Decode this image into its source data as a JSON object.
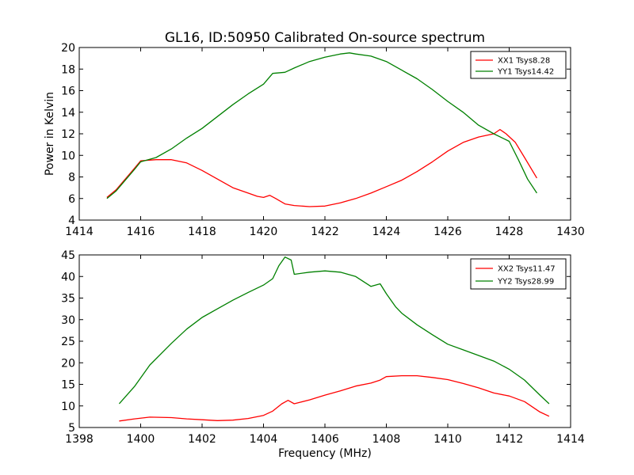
{
  "figure": {
    "title": "GL16, ID:50950 Calibrated On-source spectrum",
    "xlabel": "Frequency (MHz)"
  },
  "chart_data": [
    {
      "type": "line",
      "title": "GL16, ID:50950 Calibrated On-source spectrum",
      "xlabel": "",
      "ylabel": "Power in Kelvin",
      "xlim": [
        1414,
        1430
      ],
      "ylim": [
        4,
        20
      ],
      "xticks": [
        1414,
        1416,
        1418,
        1420,
        1422,
        1424,
        1426,
        1428,
        1430
      ],
      "yticks": [
        4,
        6,
        8,
        10,
        12,
        14,
        16,
        18,
        20
      ],
      "grid": false,
      "legend": "top-right",
      "series": [
        {
          "name": "XX1 Tsys8.28",
          "color": "#ff0000",
          "x": [
            1414.9,
            1415.2,
            1415.5,
            1415.8,
            1416.0,
            1416.5,
            1417.0,
            1417.5,
            1418.0,
            1418.5,
            1419.0,
            1419.5,
            1419.8,
            1420.0,
            1420.2,
            1420.4,
            1420.7,
            1421.0,
            1421.5,
            1422.0,
            1422.5,
            1423.0,
            1423.5,
            1424.0,
            1424.5,
            1425.0,
            1425.5,
            1426.0,
            1426.5,
            1427.0,
            1427.5,
            1427.7,
            1427.9,
            1428.2,
            1428.5,
            1428.9
          ],
          "y": [
            6.1,
            6.8,
            7.8,
            8.8,
            9.5,
            9.6,
            9.6,
            9.3,
            8.6,
            7.8,
            7.0,
            6.5,
            6.2,
            6.1,
            6.3,
            6.0,
            5.5,
            5.35,
            5.25,
            5.3,
            5.6,
            6.0,
            6.5,
            7.1,
            7.7,
            8.5,
            9.4,
            10.4,
            11.2,
            11.7,
            12.0,
            12.4,
            12.0,
            11.2,
            9.8,
            7.9
          ]
        },
        {
          "name": "YY1 Tsys14.42",
          "color": "#008000",
          "x": [
            1414.9,
            1415.2,
            1415.5,
            1415.8,
            1416.0,
            1416.5,
            1417.0,
            1417.5,
            1418.0,
            1418.5,
            1419.0,
            1419.5,
            1420.0,
            1420.3,
            1420.7,
            1421.0,
            1421.5,
            1422.0,
            1422.5,
            1422.8,
            1423.0,
            1423.5,
            1424.0,
            1424.5,
            1425.0,
            1425.5,
            1426.0,
            1426.5,
            1427.0,
            1427.5,
            1428.0,
            1428.3,
            1428.6,
            1428.9
          ],
          "y": [
            6.0,
            6.7,
            7.7,
            8.7,
            9.4,
            9.8,
            10.6,
            11.6,
            12.5,
            13.6,
            14.7,
            15.7,
            16.6,
            17.6,
            17.7,
            18.1,
            18.7,
            19.1,
            19.4,
            19.5,
            19.4,
            19.2,
            18.7,
            17.9,
            17.1,
            16.1,
            15.0,
            14.0,
            12.8,
            12.0,
            11.3,
            9.6,
            7.8,
            6.5
          ]
        }
      ]
    },
    {
      "type": "line",
      "title": "",
      "xlabel": "Frequency (MHz)",
      "ylabel": "",
      "xlim": [
        1398,
        1414
      ],
      "ylim": [
        5,
        45
      ],
      "xticks": [
        1398,
        1400,
        1402,
        1404,
        1406,
        1408,
        1410,
        1412,
        1414
      ],
      "yticks": [
        5,
        10,
        15,
        20,
        25,
        30,
        35,
        40,
        45
      ],
      "grid": false,
      "legend": "top-right",
      "series": [
        {
          "name": "XX2 Tsys11.47",
          "color": "#ff0000",
          "x": [
            1399.3,
            1399.8,
            1400.3,
            1401.0,
            1401.5,
            1402.0,
            1402.5,
            1403.0,
            1403.5,
            1404.0,
            1404.3,
            1404.6,
            1404.8,
            1405.0,
            1405.5,
            1406.0,
            1406.5,
            1407.0,
            1407.5,
            1407.8,
            1408.0,
            1408.5,
            1409.0,
            1409.5,
            1410.0,
            1410.5,
            1411.0,
            1411.5,
            1412.0,
            1412.5,
            1413.0,
            1413.3
          ],
          "y": [
            6.5,
            7.0,
            7.4,
            7.3,
            7.0,
            6.8,
            6.6,
            6.7,
            7.1,
            7.8,
            8.8,
            10.5,
            11.3,
            10.5,
            11.4,
            12.5,
            13.5,
            14.6,
            15.3,
            16.0,
            16.8,
            17.0,
            17.0,
            16.6,
            16.1,
            15.2,
            14.2,
            13.0,
            12.3,
            11.0,
            8.6,
            7.6
          ]
        },
        {
          "name": "YY2 Tsys28.99",
          "color": "#008000",
          "x": [
            1399.3,
            1399.8,
            1400.3,
            1401.0,
            1401.5,
            1402.0,
            1402.5,
            1403.0,
            1403.5,
            1404.0,
            1404.3,
            1404.5,
            1404.7,
            1404.9,
            1405.0,
            1405.5,
            1406.0,
            1406.5,
            1407.0,
            1407.5,
            1407.8,
            1408.0,
            1408.3,
            1408.5,
            1409.0,
            1409.5,
            1410.0,
            1410.5,
            1411.0,
            1411.5,
            1412.0,
            1412.5,
            1413.0,
            1413.3
          ],
          "y": [
            10.5,
            14.5,
            19.5,
            24.5,
            27.8,
            30.5,
            32.5,
            34.5,
            36.3,
            38.0,
            39.5,
            42.5,
            44.5,
            43.8,
            40.5,
            41.0,
            41.3,
            41.0,
            40.0,
            37.7,
            38.3,
            36.0,
            33.0,
            31.5,
            28.8,
            26.5,
            24.3,
            23.0,
            21.7,
            20.4,
            18.5,
            16.0,
            12.5,
            10.5
          ]
        }
      ]
    }
  ]
}
